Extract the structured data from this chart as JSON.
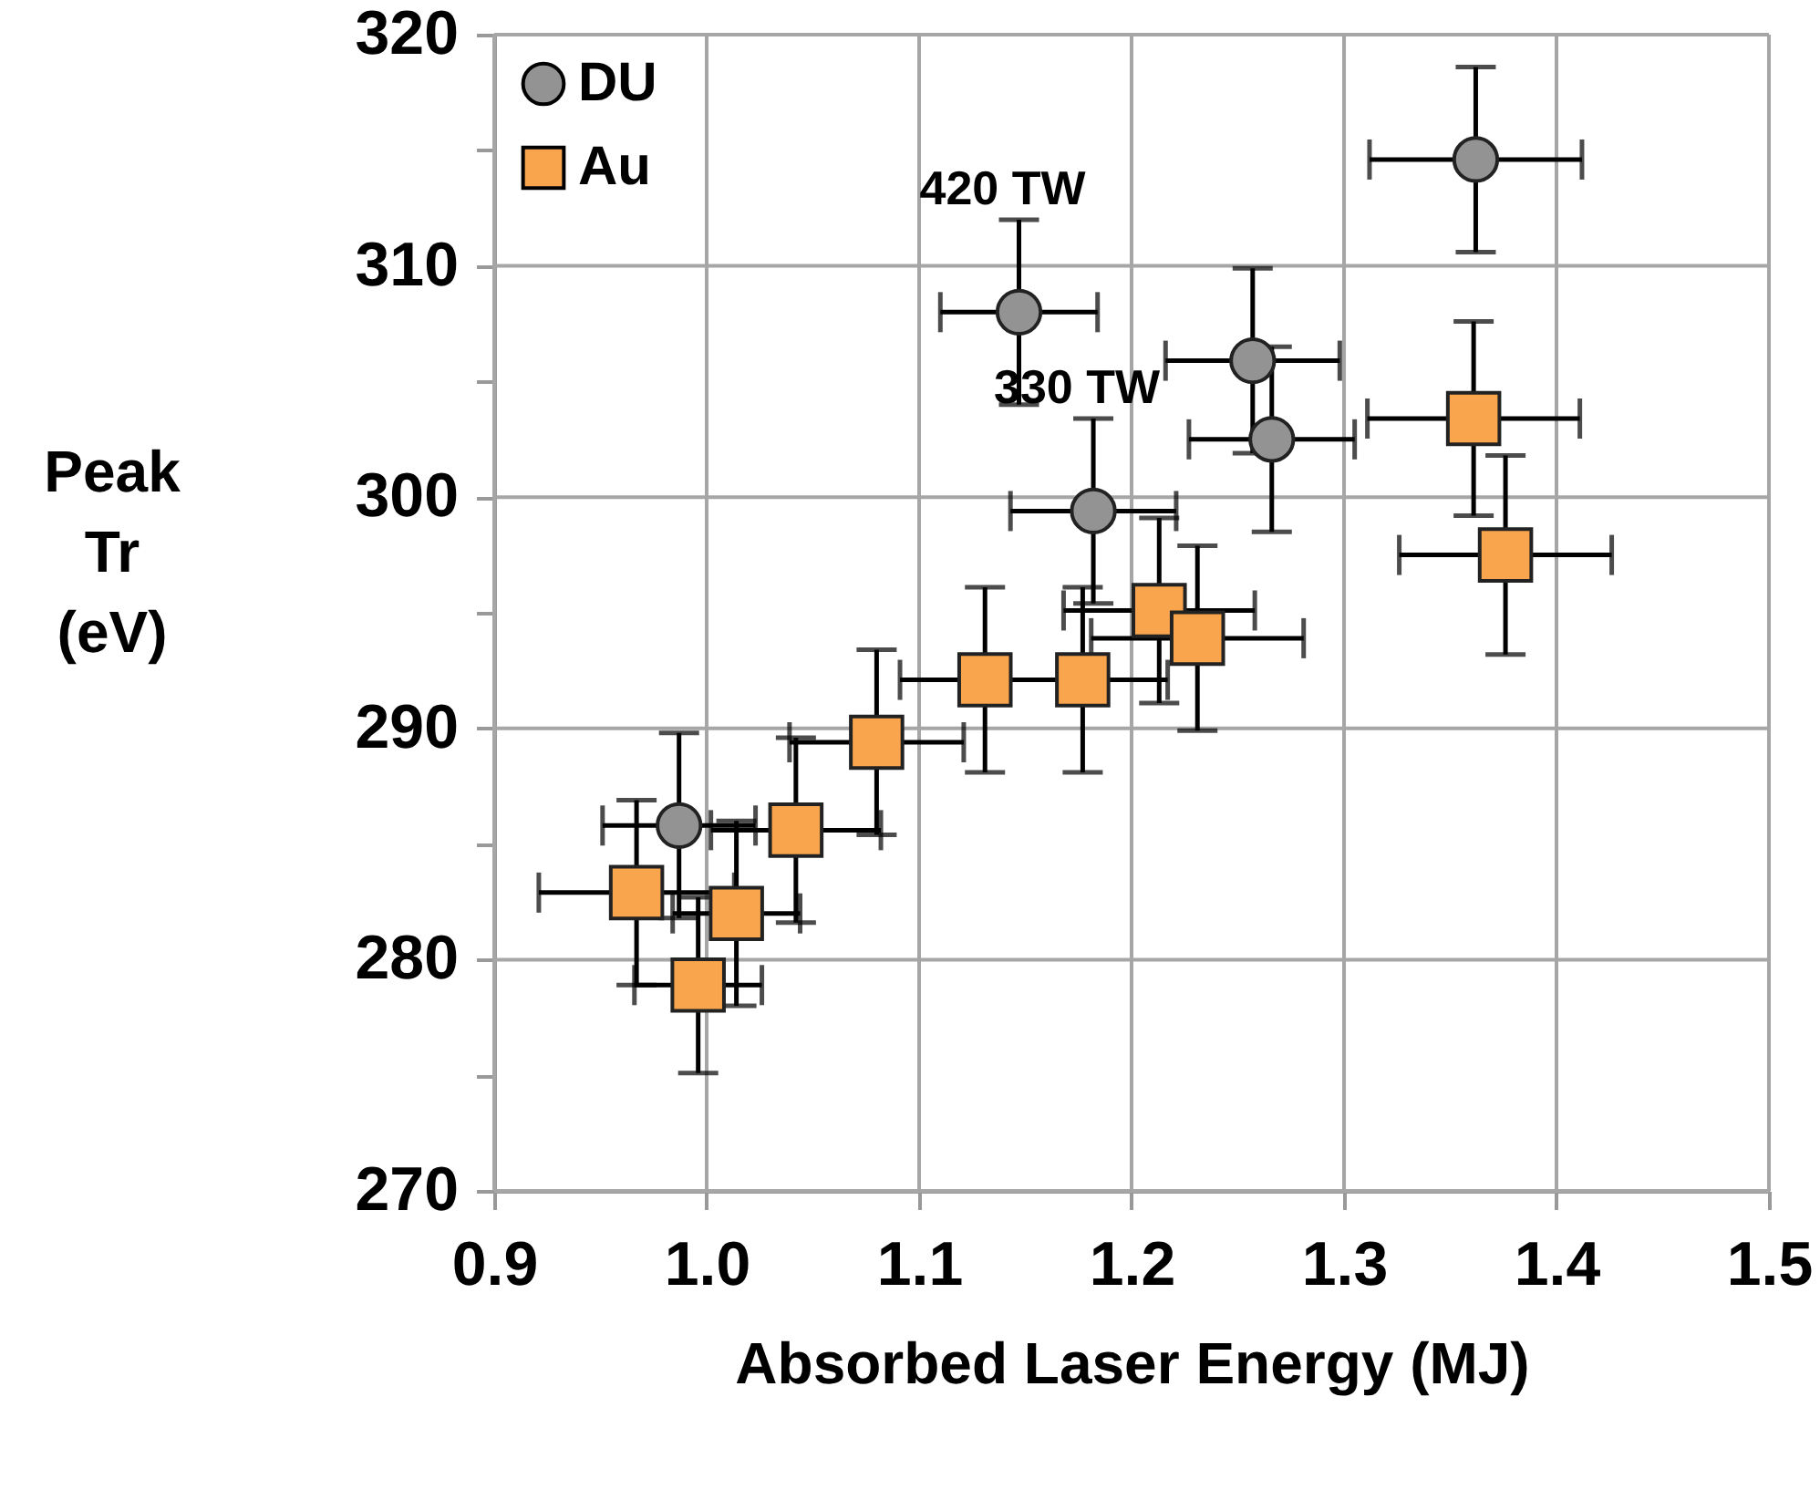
{
  "chart_data": {
    "type": "scatter",
    "xlabel": "Absorbed Laser Energy (MJ)",
    "ylabel": "Peak Tr (eV)",
    "xlim": [
      0.9,
      1.5
    ],
    "xticks": [
      0.9,
      {
        "value": 1.0,
        "label": "1.0"
      },
      1.1,
      1.2,
      1.3,
      1.4,
      1.5
    ],
    "ylim": [
      270,
      320
    ],
    "yticks": [
      270,
      {
        "value": 275,
        "label": null
      },
      280,
      {
        "value": 285,
        "label": null
      },
      290,
      {
        "value": 295,
        "label": null
      },
      300,
      {
        "value": 305,
        "label": null
      },
      310,
      {
        "value": 315,
        "label": null
      },
      320
    ],
    "grid": true,
    "legend": "top left",
    "series": [
      {
        "name": "DU",
        "color": "#939393",
        "marker": "circle",
        "x": [
          1.362,
          1.147,
          1.257,
          1.266,
          1.182,
          0.987
        ],
        "values": [
          314.6,
          308.0,
          305.9,
          302.5,
          299.4,
          285.8
        ],
        "errors": [
          4,
          4,
          4,
          4,
          4,
          4
        ],
        "xerrors": [
          0.05,
          0.037,
          0.041,
          0.039,
          0.039,
          0.036
        ]
      },
      {
        "name": "Au",
        "color": "#f9a54e",
        "marker": "square",
        "x": [
          1.361,
          1.376,
          1.213,
          1.231,
          1.177,
          1.131,
          1.08,
          1.042,
          0.967,
          1.014,
          0.996
        ],
        "values": [
          303.4,
          297.5,
          295.1,
          293.9,
          292.1,
          292.1,
          289.4,
          285.6,
          282.9,
          282.0,
          278.9
        ],
        "errors": [
          4.2,
          4.3,
          4,
          4,
          4,
          4,
          4,
          4,
          4,
          4,
          3.8
        ],
        "xerrors": [
          0.05,
          0.05,
          0.045,
          0.05,
          0.04,
          0.04,
          0.041,
          0.04,
          0.046,
          0.03,
          0.03
        ]
      }
    ],
    "annotations": [
      {
        "text": "420 TW",
        "x": 1.147,
        "y": 308.0
      },
      {
        "text": "330 TW",
        "x": 1.182,
        "y": 299.4
      }
    ]
  }
}
